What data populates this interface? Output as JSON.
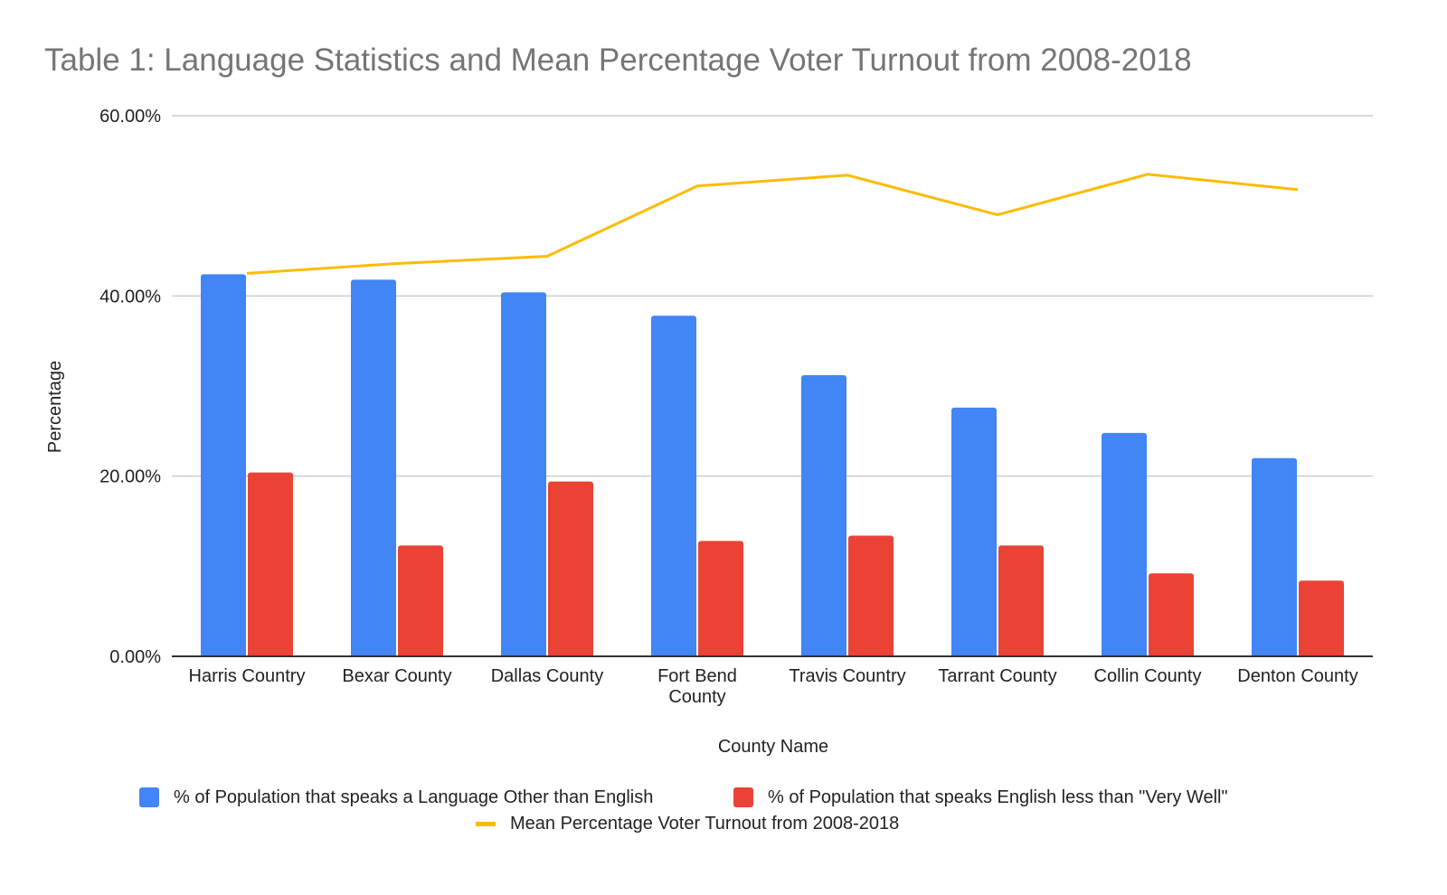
{
  "chart_data": {
    "type": "bar",
    "title": "Table 1: Language Statistics and Mean Percentage Voter Turnout from 2008-2018",
    "xlabel": "County Name",
    "ylabel": "Percentage",
    "ylim": [
      0,
      60
    ],
    "yticks": [
      0,
      20,
      40,
      60
    ],
    "ytick_labels": [
      "0.00%",
      "20.00%",
      "40.00%",
      "60.00%"
    ],
    "grid": true,
    "legend_position": "bottom",
    "categories": [
      [
        "Harris Country"
      ],
      [
        "Bexar County"
      ],
      [
        "Dallas County"
      ],
      [
        "Fort Bend",
        "County"
      ],
      [
        "Travis Country"
      ],
      [
        "Tarrant County"
      ],
      [
        "Collin County"
      ],
      [
        "Denton County"
      ]
    ],
    "series": [
      {
        "name": "% of Population that speaks a Language Other than English",
        "type": "bar",
        "color": "#4285f4",
        "values": [
          42.4,
          41.8,
          40.4,
          37.8,
          31.2,
          27.6,
          24.8,
          22.0
        ]
      },
      {
        "name": "% of Population that speaks English less than \"Very Well\"",
        "type": "bar",
        "color": "#ea4335",
        "values": [
          20.4,
          12.3,
          19.4,
          12.8,
          13.4,
          12.3,
          9.2,
          8.4
        ]
      },
      {
        "name": "Mean Percentage Voter Turnout from 2008-2018",
        "type": "line",
        "color": "#fbbc04",
        "values": [
          42.5,
          43.6,
          44.4,
          52.2,
          53.4,
          49.0,
          53.5,
          51.8
        ]
      }
    ]
  }
}
